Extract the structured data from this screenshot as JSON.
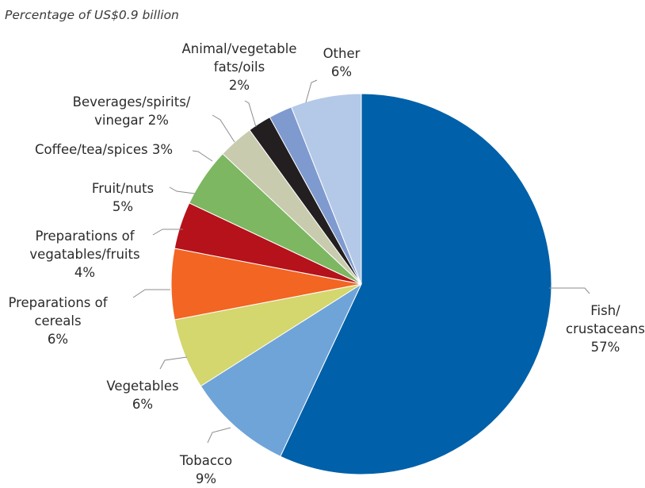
{
  "chart_data": {
    "type": "pie",
    "title": "",
    "subtitle": "Percentage of US$0.9 billion",
    "start": "12 o'clock",
    "direction": "clockwise",
    "slices": [
      {
        "label_lines": [
          "Fish/",
          "crustaceans",
          "57%"
        ],
        "value": 57,
        "color": "#0060A9"
      },
      {
        "label_lines": [
          "Tobacco",
          "9%"
        ],
        "value": 9,
        "color": "#6FA4D8"
      },
      {
        "label_lines": [
          "Vegetables",
          "6%"
        ],
        "value": 6,
        "color": "#D4D66E"
      },
      {
        "label_lines": [
          "Preparations of",
          "cereals",
          "6%"
        ],
        "value": 6,
        "color": "#F26522"
      },
      {
        "label_lines": [
          "Preparations of",
          "vegatables/fruits",
          "4%"
        ],
        "value": 4,
        "color": "#B5121B"
      },
      {
        "label_lines": [
          "Fruit/nuts",
          "5%"
        ],
        "value": 5,
        "color": "#7DB761"
      },
      {
        "label_lines": [
          "Coffee/tea/spices 3%"
        ],
        "value": 3,
        "color": "#C9CBAE"
      },
      {
        "label_lines": [
          "Beverages/spirits/",
          "vinegar 2%"
        ],
        "value": 2,
        "color": "#231F20"
      },
      {
        "label_lines": [
          "Animal/vegetable",
          "fats/oils",
          "2%"
        ],
        "value": 2,
        "color": "#7F9ACF"
      },
      {
        "label_lines": [
          "Other",
          "6%"
        ],
        "value": 6,
        "color": "#B4C9E7"
      }
    ]
  }
}
